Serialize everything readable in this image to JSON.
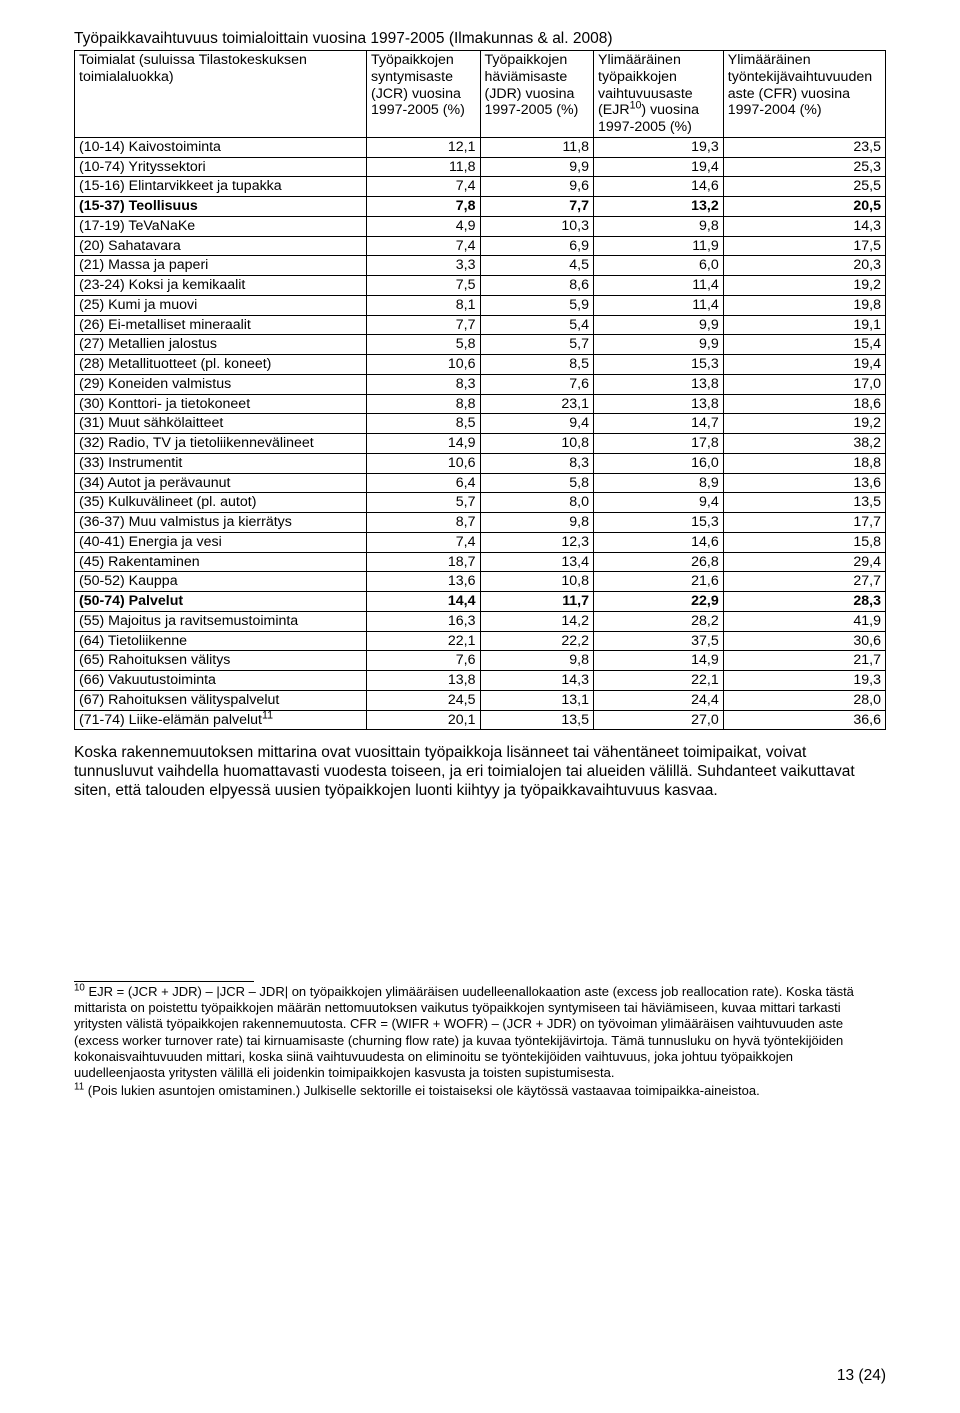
{
  "title_line": "Työpaikkavaihtuvuus toimialoittain vuosina 1997-2005 (Ilmakunnas & al. 2008)",
  "page_number": "13 (24)",
  "header": {
    "c0": "Toimialat\n(suluissa Tilastokeskuksen toimialaluokka)",
    "c1": "Työpaikkojen syntymisaste (JCR) vuosina 1997-2005 (%)",
    "c2": "Työpaikkojen häviämisaste (JDR) vuosina 1997-2005 (%)",
    "c3_pre": "Ylimääräinen työpaikkojen vaihtuvuusaste (EJR",
    "c3_sup": "10",
    "c3_post": ") vuosina 1997-2005 (%)",
    "c4": "Ylimääräinen työntekijävaihtuvuuden aste (CFR) vuosina 1997-2004 (%)"
  },
  "rows": [
    {
      "label": "(10-14) Kaivostoiminta",
      "v": [
        "12,1",
        "11,8",
        "19,3",
        "23,5"
      ],
      "bold": false
    },
    {
      "label": "(10-74) Yrityssektori",
      "v": [
        "11,8",
        "9,9",
        "19,4",
        "25,3"
      ],
      "bold": false
    },
    {
      "label": "(15-16) Elintarvikkeet ja tupakka",
      "v": [
        "7,4",
        "9,6",
        "14,6",
        "25,5"
      ],
      "bold": false
    },
    {
      "label": "(15-37) Teollisuus",
      "v": [
        "7,8",
        "7,7",
        "13,2",
        "20,5"
      ],
      "bold": true
    },
    {
      "label": "(17-19) TeVaNaKe",
      "v": [
        "4,9",
        "10,3",
        "9,8",
        "14,3"
      ],
      "bold": false
    },
    {
      "label": "(20) Sahatavara",
      "v": [
        "7,4",
        "6,9",
        "11,9",
        "17,5"
      ],
      "bold": false
    },
    {
      "label": "(21) Massa ja paperi",
      "v": [
        "3,3",
        "4,5",
        "6,0",
        "20,3"
      ],
      "bold": false
    },
    {
      "label": "(23-24) Koksi ja kemikaalit",
      "v": [
        "7,5",
        "8,6",
        "11,4",
        "19,2"
      ],
      "bold": false
    },
    {
      "label": "(25) Kumi ja muovi",
      "v": [
        "8,1",
        "5,9",
        "11,4",
        "19,8"
      ],
      "bold": false
    },
    {
      "label": "(26) Ei-metalliset mineraalit",
      "v": [
        "7,7",
        "5,4",
        "9,9",
        "19,1"
      ],
      "bold": false
    },
    {
      "label": "(27) Metallien jalostus",
      "v": [
        "5,8",
        "5,7",
        "9,9",
        "15,4"
      ],
      "bold": false
    },
    {
      "label": "(28) Metallituotteet (pl. koneet)",
      "v": [
        "10,6",
        "8,5",
        "15,3",
        "19,4"
      ],
      "bold": false
    },
    {
      "label": "(29) Koneiden valmistus",
      "v": [
        "8,3",
        "7,6",
        "13,8",
        "17,0"
      ],
      "bold": false
    },
    {
      "label": "(30) Konttori- ja tietokoneet",
      "v": [
        "8,8",
        "23,1",
        "13,8",
        "18,6"
      ],
      "bold": false
    },
    {
      "label": "(31) Muut sähkölaitteet",
      "v": [
        "8,5",
        "9,4",
        "14,7",
        "19,2"
      ],
      "bold": false
    },
    {
      "label": "(32) Radio, TV ja tietoliikennevälineet",
      "v": [
        "14,9",
        "10,8",
        "17,8",
        "38,2"
      ],
      "bold": false
    },
    {
      "label": "(33) Instrumentit",
      "v": [
        "10,6",
        "8,3",
        "16,0",
        "18,8"
      ],
      "bold": false
    },
    {
      "label": "(34) Autot ja perävaunut",
      "v": [
        "6,4",
        "5,8",
        "8,9",
        "13,6"
      ],
      "bold": false
    },
    {
      "label": "(35) Kulkuvälineet (pl. autot)",
      "v": [
        "5,7",
        "8,0",
        "9,4",
        "13,5"
      ],
      "bold": false
    },
    {
      "label": "(36-37) Muu valmistus ja kierrätys",
      "v": [
        "8,7",
        "9,8",
        "15,3",
        "17,7"
      ],
      "bold": false
    },
    {
      "label": "(40-41) Energia ja vesi",
      "v": [
        "7,4",
        "12,3",
        "14,6",
        "15,8"
      ],
      "bold": false
    },
    {
      "label": "(45) Rakentaminen",
      "v": [
        "18,7",
        "13,4",
        "26,8",
        "29,4"
      ],
      "bold": false
    },
    {
      "label": "(50-52) Kauppa",
      "v": [
        "13,6",
        "10,8",
        "21,6",
        "27,7"
      ],
      "bold": false
    },
    {
      "label": "(50-74) Palvelut",
      "v": [
        "14,4",
        "11,7",
        "22,9",
        "28,3"
      ],
      "bold": true
    },
    {
      "label": "(55) Majoitus ja ravitsemustoiminta",
      "v": [
        "16,3",
        "14,2",
        "28,2",
        "41,9"
      ],
      "bold": false
    },
    {
      "label": "(64) Tietoliikenne",
      "v": [
        "22,1",
        "22,2",
        "37,5",
        "30,6"
      ],
      "bold": false
    },
    {
      "label": "(65) Rahoituksen välitys",
      "v": [
        "7,6",
        "9,8",
        "14,9",
        "21,7"
      ],
      "bold": false
    },
    {
      "label": "(66) Vakuutustoiminta",
      "v": [
        "13,8",
        "14,3",
        "22,1",
        "19,3"
      ],
      "bold": false
    },
    {
      "label": "(67) Rahoituksen välityspalvelut",
      "v": [
        "24,5",
        "13,1",
        "24,4",
        "28,0"
      ],
      "bold": false
    },
    {
      "label": "(71-74) Liike-elämän palvelut",
      "sup": "11",
      "v": [
        "20,1",
        "13,5",
        "27,0",
        "36,6"
      ],
      "bold": false
    }
  ],
  "body_paragraph": "Koska rakennemuutoksen mittarina ovat vuosittain työpaikkoja lisänneet tai vähentäneet toimipaikat, voivat tunnusluvut vaihdella huomattavasti vuodesta toiseen, ja eri toimialojen tai alueiden välillä. Suhdanteet vaikuttavat siten, että talouden elpyessä uusien työpaikkojen luonti kiihtyy ja työpaikkavaihtuvuus kasvaa.",
  "footnote10": {
    "sup": "10",
    "text": " EJR = (JCR + JDR) – |JCR – JDR| on työpaikkojen ylimääräisen uudelleenallokaation aste (excess job reallocation rate). Koska tästä mittarista on poistettu työpaikkojen määrän nettomuutoksen vaikutus työpaikkojen syntymiseen tai häviämiseen, kuvaa mittari tarkasti yritysten välistä työpaikkojen rakennemuutosta. CFR = (WIFR + WOFR) – (JCR + JDR) on työvoiman ylimääräisen vaihtuvuuden aste (excess worker turnover rate) tai kirnuamisaste (churning flow rate) ja kuvaa työntekijävirtoja. Tämä tunnusluku on hyvä työntekijöiden kokonaisvaihtuvuuden mittari, koska siinä vaihtuvuudesta on eliminoitu se työntekijöiden vaihtuvuus, joka johtuu työpaikkojen uudelleenjaosta yritysten välillä eli joidenkin toimipaikkojen kasvusta ja toisten supistumisesta."
  },
  "footnote11": {
    "sup": "11",
    "text": " (Pois lukien asuntojen omistaminen.) Julkiselle sektorille ei toistaiseksi ole käytössä vastaavaa toimipaikka-aineistoa."
  }
}
